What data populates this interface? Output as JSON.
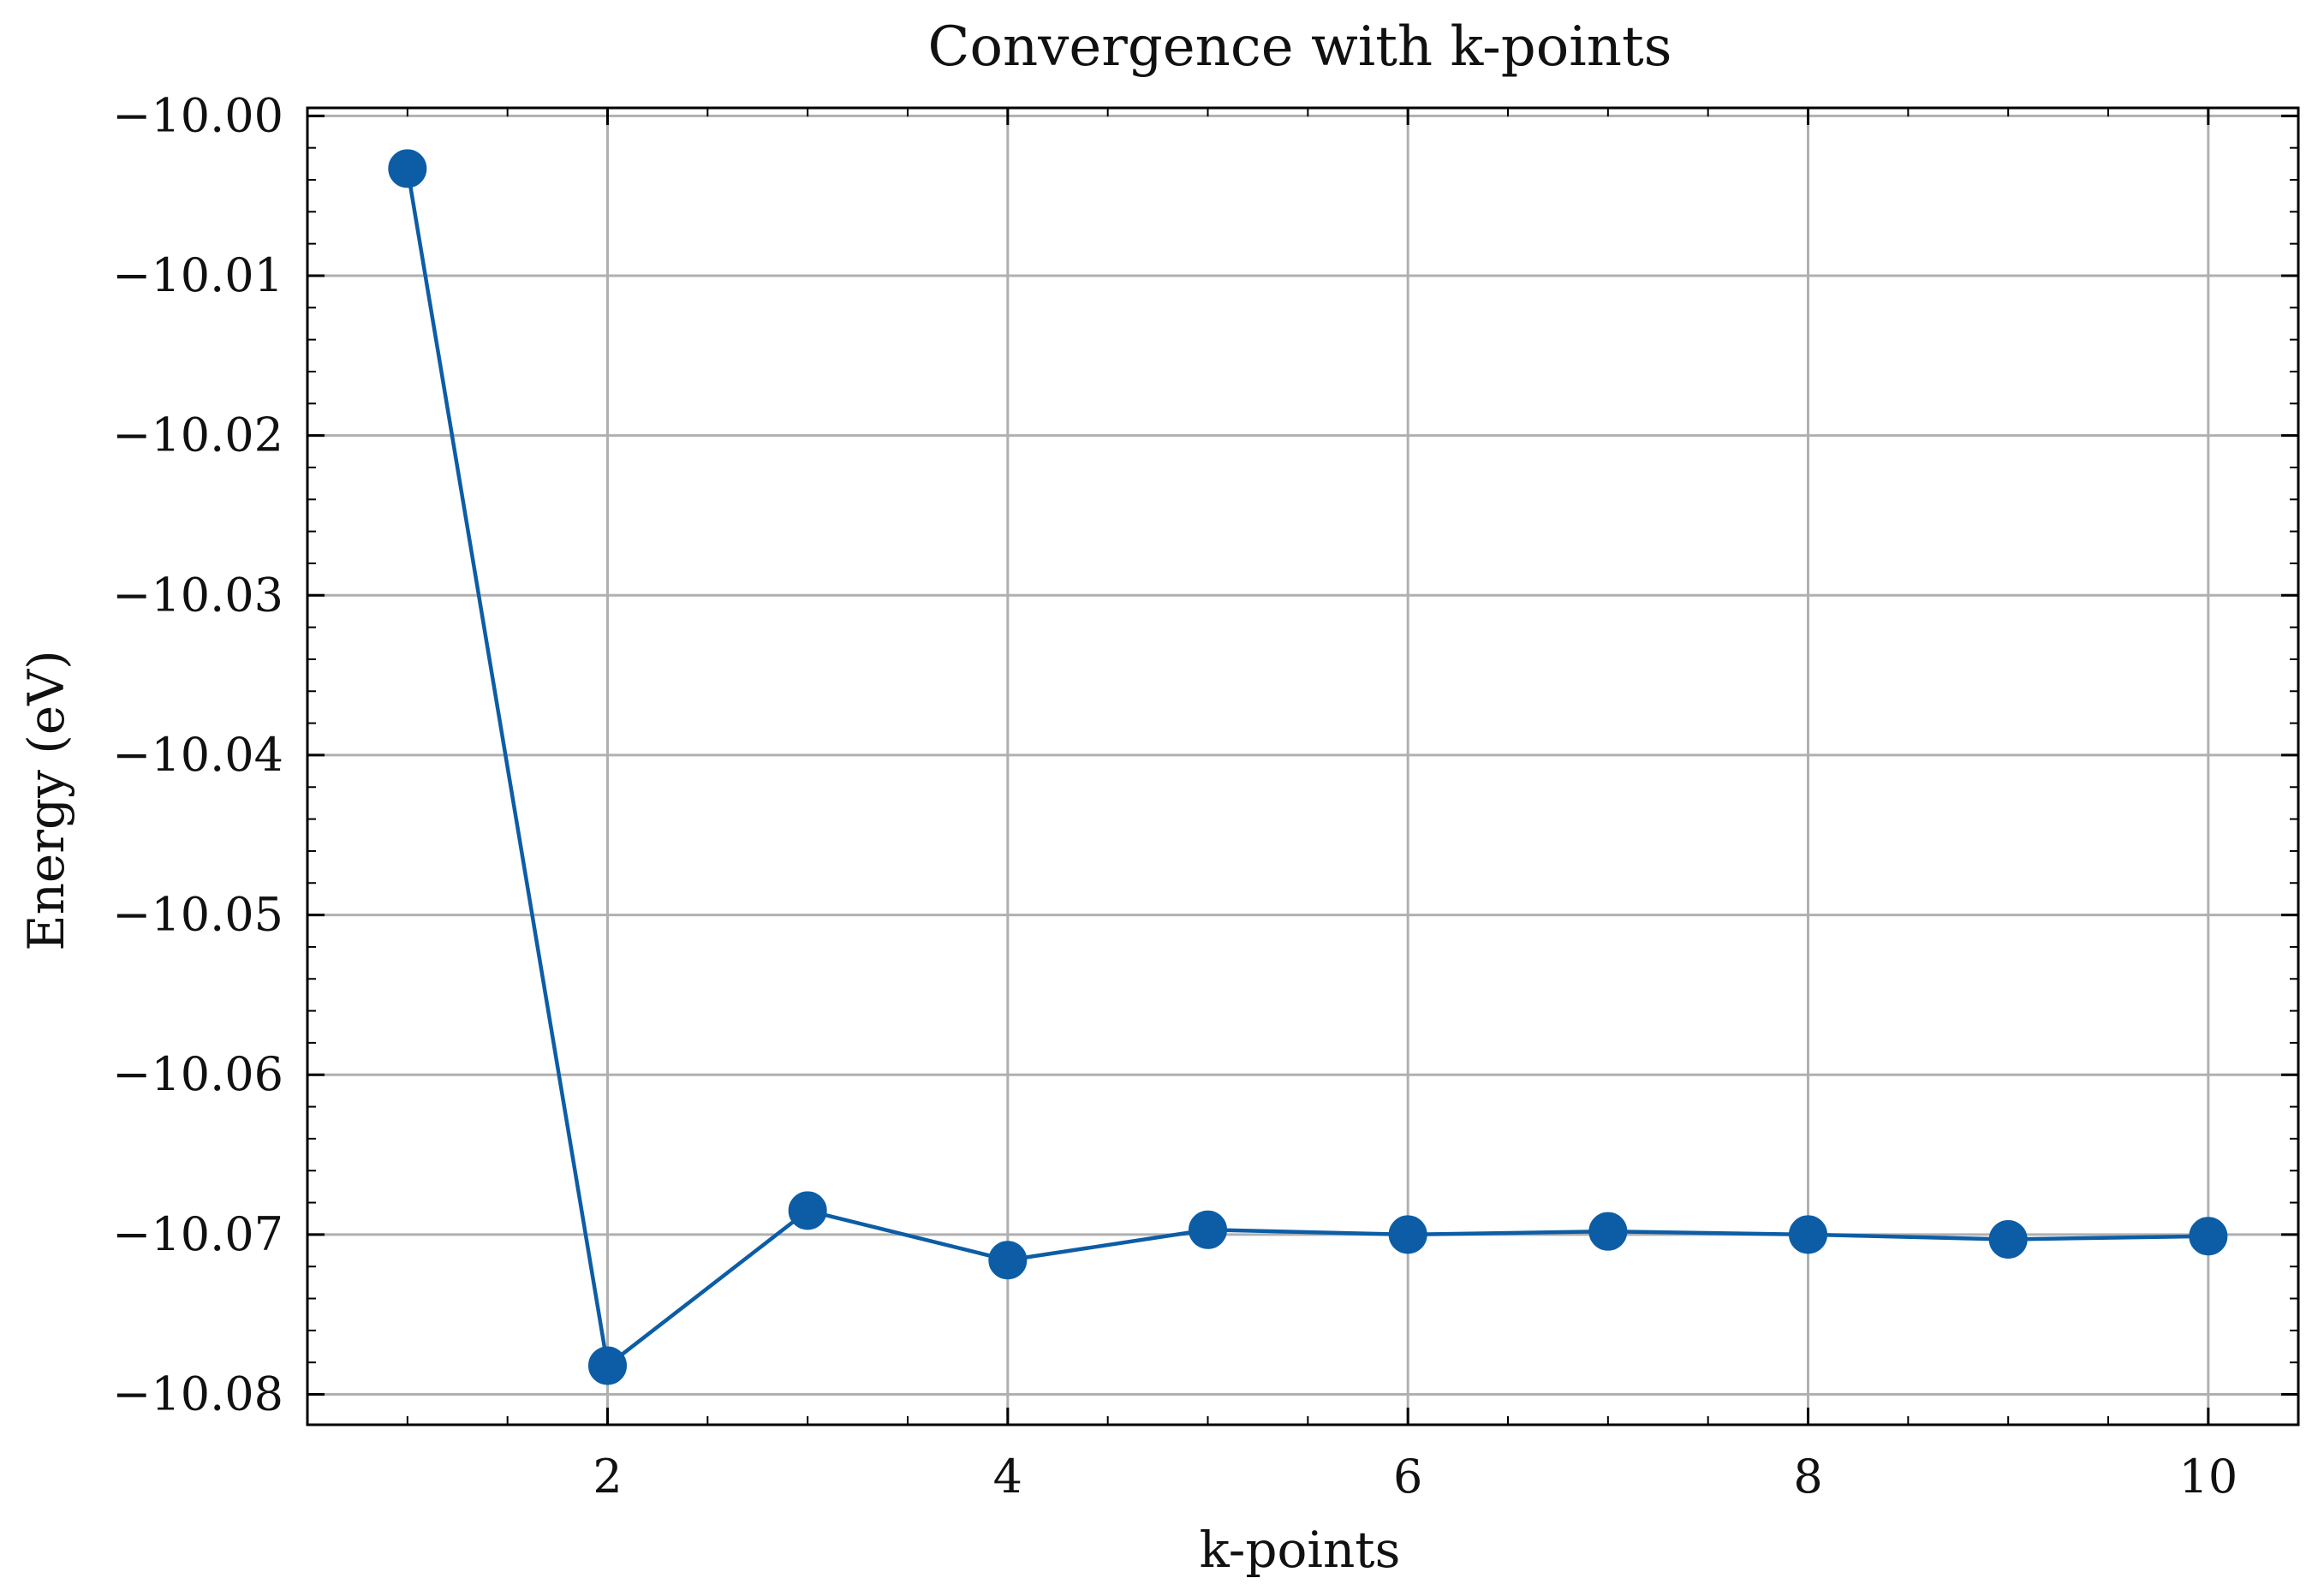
{
  "chart_data": {
    "type": "line",
    "title": "Convergence with k-points",
    "xlabel": "k-points",
    "ylabel": "Energy (eV)",
    "x": [
      1,
      2,
      3,
      4,
      5,
      6,
      7,
      8,
      9,
      10
    ],
    "series": [
      {
        "values": [
          -10.0033,
          -10.0782,
          -10.0685,
          -10.0716,
          -10.0697,
          -10.07,
          -10.0698,
          -10.07,
          -10.0703,
          -10.0701
        ],
        "color": "#0C5DA5",
        "marker": "circle"
      }
    ],
    "xlim": [
      0.5,
      10.45
    ],
    "ylim": [
      -10.0819,
      -9.9995
    ],
    "xticks": [
      2,
      4,
      6,
      8,
      10
    ],
    "xtick_labels": [
      "2",
      "4",
      "6",
      "8",
      "10"
    ],
    "yticks": [
      -10.0,
      -10.01,
      -10.02,
      -10.03,
      -10.04,
      -10.05,
      -10.06,
      -10.07,
      -10.08
    ],
    "ytick_labels": [
      "−10.00",
      "−10.01",
      "−10.02",
      "−10.03",
      "−10.04",
      "−10.05",
      "−10.06",
      "−10.07",
      "−10.08"
    ],
    "grid": true,
    "grid_color": "#b0b0b0",
    "axes_color": "#000000"
  }
}
